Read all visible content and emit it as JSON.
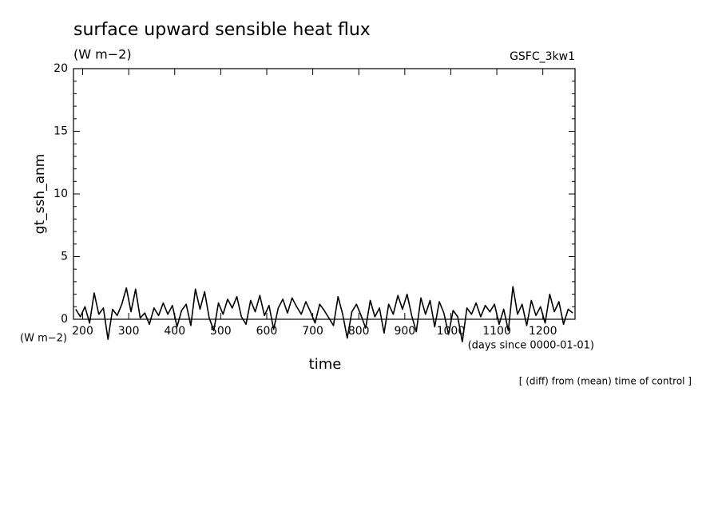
{
  "chart_data": {
    "type": "line",
    "title": "surface upward sensible heat flux",
    "subtitle": "(W m−2)",
    "source_label": "GSFC_3kw1",
    "ylabel": "gt_ssh_anm",
    "yunit": "(W m−2)",
    "xlabel": "time",
    "xunit": "(days since 0000-01-01)",
    "note": "[ (diff) from (mean) time of control ]",
    "color": "#000000",
    "xlim": [
      180,
      1270
    ],
    "ylim": [
      0,
      20
    ],
    "xticks": [
      200,
      300,
      400,
      500,
      600,
      700,
      800,
      900,
      1000,
      1100,
      1200
    ],
    "yticks": [
      0,
      5,
      10,
      15,
      20
    ],
    "x": [
      185,
      195,
      205,
      215,
      225,
      235,
      245,
      255,
      265,
      275,
      285,
      295,
      305,
      315,
      325,
      335,
      345,
      355,
      365,
      375,
      385,
      395,
      405,
      415,
      425,
      435,
      445,
      455,
      465,
      475,
      485,
      495,
      505,
      515,
      525,
      535,
      545,
      555,
      565,
      575,
      585,
      595,
      605,
      615,
      625,
      635,
      645,
      655,
      665,
      675,
      685,
      695,
      705,
      715,
      725,
      735,
      745,
      755,
      765,
      775,
      785,
      795,
      805,
      815,
      825,
      835,
      845,
      855,
      865,
      875,
      885,
      895,
      905,
      915,
      925,
      935,
      945,
      955,
      965,
      975,
      985,
      995,
      1005,
      1015,
      1025,
      1035,
      1045,
      1055,
      1065,
      1075,
      1085,
      1095,
      1105,
      1115,
      1125,
      1135,
      1145,
      1155,
      1165,
      1175,
      1185,
      1195,
      1205,
      1215,
      1225,
      1235,
      1245,
      1255,
      1265
    ],
    "values": [
      0.8,
      0.2,
      1.0,
      -0.3,
      2.1,
      0.4,
      0.9,
      -1.6,
      0.8,
      0.3,
      1.2,
      2.5,
      0.6,
      2.4,
      0.1,
      0.5,
      -0.4,
      0.9,
      0.3,
      1.3,
      0.4,
      1.1,
      -0.6,
      0.7,
      1.2,
      -0.5,
      2.4,
      0.8,
      2.2,
      0.1,
      -0.9,
      1.3,
      0.4,
      1.6,
      0.9,
      1.8,
      0.2,
      -0.4,
      1.5,
      0.6,
      1.9,
      0.3,
      1.1,
      -0.8,
      0.9,
      1.6,
      0.5,
      1.7,
      1.0,
      0.4,
      1.4,
      0.6,
      -0.3,
      1.2,
      0.7,
      0.1,
      -0.5,
      1.8,
      0.4,
      -1.5,
      0.6,
      1.2,
      0.3,
      -0.7,
      1.5,
      0.2,
      0.9,
      -1.1,
      1.2,
      0.4,
      1.9,
      0.8,
      2.0,
      0.3,
      -1.0,
      1.7,
      0.4,
      1.5,
      -0.6,
      1.4,
      0.5,
      -1.2,
      0.7,
      0.2,
      -1.8,
      0.9,
      0.4,
      1.3,
      0.2,
      1.1,
      0.6,
      1.2,
      -0.4,
      0.8,
      -0.9,
      2.6,
      0.4,
      1.2,
      -0.5,
      1.5,
      0.3,
      1.0,
      -0.3,
      2.0,
      0.6,
      1.4,
      -0.4,
      0.8,
      0.5
    ]
  }
}
